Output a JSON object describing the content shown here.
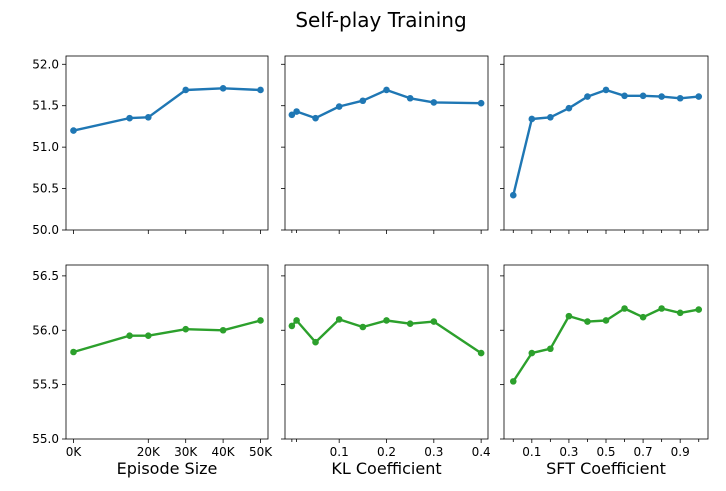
{
  "figure": {
    "title": "Self-play Training"
  },
  "chart_data": [
    {
      "type": "line",
      "row": 0,
      "col": 0,
      "x": [
        0,
        15000,
        20000,
        30000,
        40000,
        50000
      ],
      "xlim": [
        -2000,
        52000
      ],
      "xticks": [
        0,
        20000,
        30000,
        40000,
        50000
      ],
      "xtick_labels": [
        "0K",
        "20K",
        "30K",
        "40K",
        "50K"
      ],
      "minor_xticks": [],
      "ylim": [
        50.0,
        52.1
      ],
      "yticks": [
        50.0,
        50.5,
        51.0,
        51.5,
        52.0
      ],
      "ytick_labels": [
        "50.0",
        "50.5",
        "51.0",
        "51.5",
        "52.0"
      ],
      "series": [
        {
          "color": "#1f77b4",
          "values": [
            51.2,
            51.35,
            51.36,
            51.69,
            51.71,
            51.69
          ]
        }
      ]
    },
    {
      "type": "line",
      "row": 0,
      "col": 1,
      "x": [
        0.0,
        0.01,
        0.05,
        0.1,
        0.15,
        0.2,
        0.25,
        0.3,
        0.4
      ],
      "xlim": [
        -0.0145,
        0.4145
      ],
      "xticks": [
        0.1,
        0.2,
        0.3,
        0.4
      ],
      "xtick_labels": [
        "0.1",
        "0.2",
        "0.3",
        "0.4"
      ],
      "minor_xticks": [
        0.0,
        0.01
      ],
      "ylim": [
        50.0,
        52.1
      ],
      "yticks": [
        50.0,
        50.5,
        51.0,
        51.5,
        52.0
      ],
      "ytick_labels": [],
      "series": [
        {
          "color": "#1f77b4",
          "values": [
            51.39,
            51.43,
            51.35,
            51.49,
            51.56,
            51.69,
            51.59,
            51.54,
            51.53
          ]
        }
      ]
    },
    {
      "type": "line",
      "row": 0,
      "col": 2,
      "x": [
        0.0,
        0.1,
        0.2,
        0.3,
        0.4,
        0.5,
        0.6,
        0.7,
        0.8,
        0.9,
        1.0
      ],
      "xlim": [
        -0.05,
        1.05
      ],
      "xticks": [
        0.1,
        0.3,
        0.5,
        0.7,
        0.9
      ],
      "xtick_labels": [
        "0.1",
        "0.3",
        "0.5",
        "0.7",
        "0.9"
      ],
      "minor_xticks": [
        0.0,
        0.2,
        0.4,
        0.6,
        0.8,
        1.0
      ],
      "ylim": [
        50.0,
        52.1
      ],
      "yticks": [
        50.0,
        50.5,
        51.0,
        51.5,
        52.0
      ],
      "ytick_labels": [],
      "series": [
        {
          "color": "#1f77b4",
          "values": [
            50.42,
            51.34,
            51.36,
            51.47,
            51.61,
            51.69,
            51.62,
            51.62,
            51.61,
            51.59,
            51.61
          ]
        }
      ]
    },
    {
      "type": "line",
      "row": 1,
      "col": 0,
      "x": [
        0,
        15000,
        20000,
        30000,
        40000,
        50000
      ],
      "xlim": [
        -2000,
        52000
      ],
      "xticks": [
        0,
        20000,
        30000,
        40000,
        50000
      ],
      "xtick_labels": [
        "0K",
        "20K",
        "30K",
        "40K",
        "50K"
      ],
      "minor_xticks": [],
      "xlabel": "Episode Size",
      "ylim": [
        55.0,
        56.6
      ],
      "yticks": [
        55.0,
        55.5,
        56.0,
        56.5
      ],
      "ytick_labels": [
        "55.0",
        "55.5",
        "56.0",
        "56.5"
      ],
      "series": [
        {
          "color": "#2ca02c",
          "values": [
            55.8,
            55.95,
            55.95,
            56.01,
            56.0,
            56.09
          ]
        }
      ]
    },
    {
      "type": "line",
      "row": 1,
      "col": 1,
      "x": [
        0.0,
        0.01,
        0.05,
        0.1,
        0.15,
        0.2,
        0.25,
        0.3,
        0.4
      ],
      "xlim": [
        -0.0145,
        0.4145
      ],
      "xticks": [
        0.1,
        0.2,
        0.3,
        0.4
      ],
      "xtick_labels": [
        "0.1",
        "0.2",
        "0.3",
        "0.4"
      ],
      "minor_xticks": [
        0.0,
        0.01
      ],
      "xlabel": "KL Coefficient",
      "ylim": [
        55.0,
        56.6
      ],
      "yticks": [
        55.0,
        55.5,
        56.0,
        56.5
      ],
      "ytick_labels": [],
      "series": [
        {
          "color": "#2ca02c",
          "values": [
            56.04,
            56.09,
            55.89,
            56.1,
            56.03,
            56.09,
            56.06,
            56.08,
            55.79
          ]
        }
      ]
    },
    {
      "type": "line",
      "row": 1,
      "col": 2,
      "x": [
        0.0,
        0.1,
        0.2,
        0.3,
        0.4,
        0.5,
        0.6,
        0.7,
        0.8,
        0.9,
        1.0
      ],
      "xlim": [
        -0.05,
        1.05
      ],
      "xticks": [
        0.1,
        0.3,
        0.5,
        0.7,
        0.9
      ],
      "xtick_labels": [
        "0.1",
        "0.3",
        "0.5",
        "0.7",
        "0.9"
      ],
      "minor_xticks": [
        0.0,
        0.2,
        0.4,
        0.6,
        0.8,
        1.0
      ],
      "xlabel": "SFT Coefficient",
      "ylim": [
        55.0,
        56.6
      ],
      "yticks": [
        55.0,
        55.5,
        56.0,
        56.5
      ],
      "ytick_labels": [],
      "series": [
        {
          "color": "#2ca02c",
          "values": [
            55.53,
            55.79,
            55.83,
            56.13,
            56.08,
            56.09,
            56.2,
            56.12,
            56.2,
            56.16,
            56.19
          ]
        }
      ]
    }
  ]
}
